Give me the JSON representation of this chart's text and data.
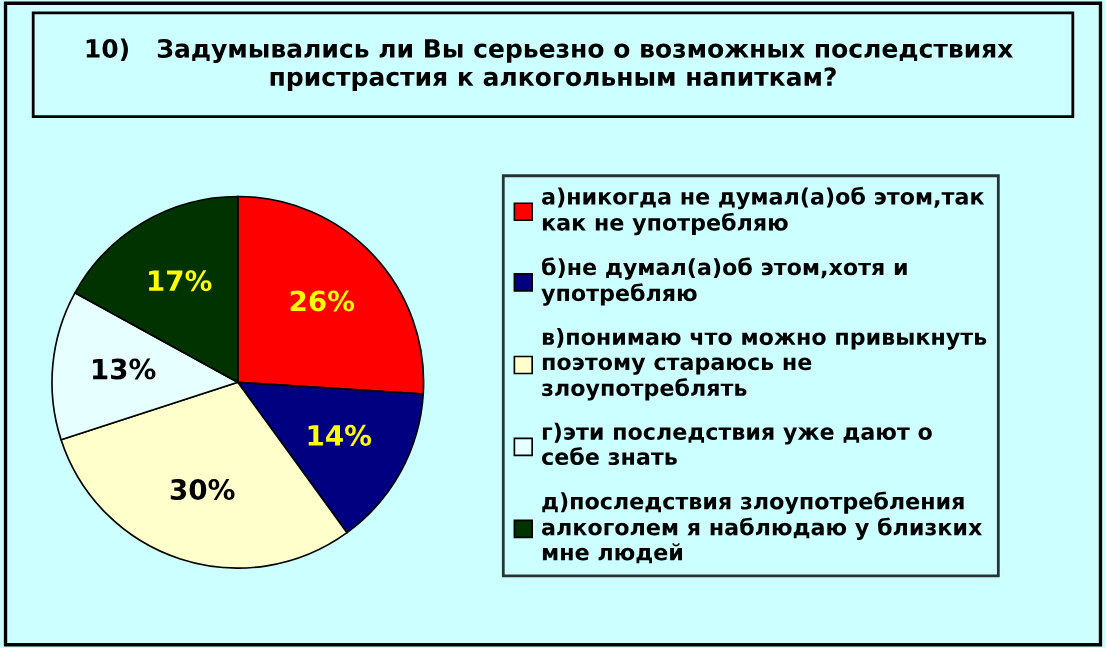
{
  "chart_data": {
    "type": "pie",
    "title": "10)   Задумывались ли Вы серьезно о возможных последствиях  пристрастия к алкогольным напиткам?",
    "categories": [
      "а)никогда не думал(а)об этом,так как не употребляю",
      "б)не думал(а)об этом,хотя и употребляю",
      "в)понимаю что можно привыкнуть поэтому стараюсь не злоупотреблять",
      "г)эти последствия уже дают о себе знать",
      "д)последствия злоупотребления алкоголем я наблюдаю у близких мне людей"
    ],
    "values": [
      26,
      14,
      30,
      13,
      17
    ],
    "colors": [
      "#ff0000",
      "#000080",
      "#ffffcc",
      "#e6ffff",
      "#003300"
    ],
    "value_labels": [
      "26%",
      "14%",
      "30%",
      "13%",
      "17%"
    ],
    "legend": "right"
  }
}
